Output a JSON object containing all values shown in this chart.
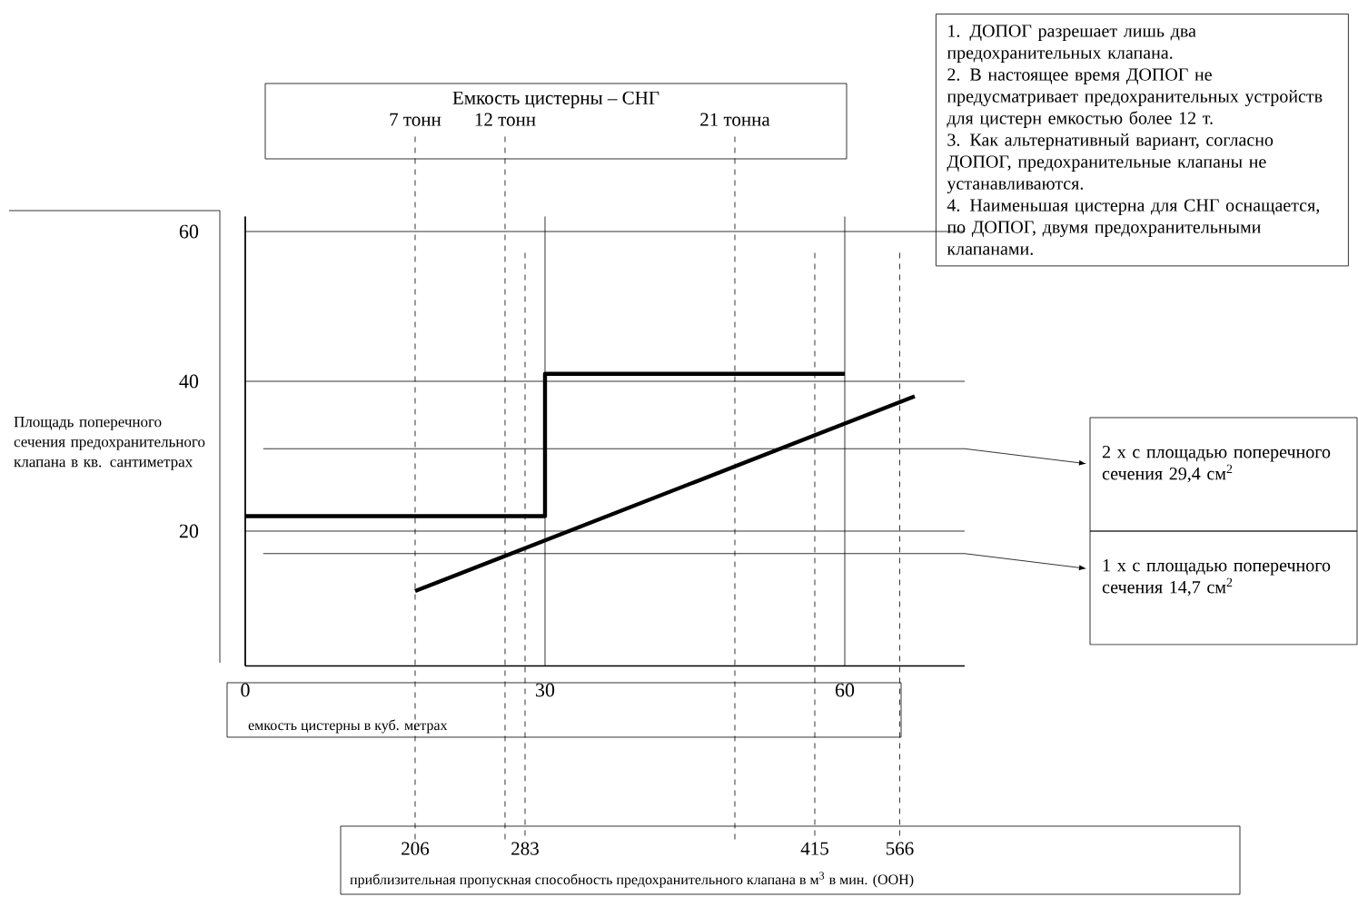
{
  "chart_data": {
    "type": "line",
    "title": "Емкость цистерны – СНГ",
    "xlabel": "емкость цистерны в куб. метрах",
    "ylabel": "Площадь поперечного сечения предохранительного клапана в кв. сантиметрах",
    "xlim": [
      0,
      72
    ],
    "ylim": [
      2,
      62
    ],
    "xticks": [
      0,
      30,
      60
    ],
    "yticks": [
      20,
      40,
      60
    ],
    "grid": true,
    "legend": "right",
    "series": [
      {
        "type": "step",
        "color": "#000000",
        "x": [
          0,
          30,
          60
        ],
        "values": [
          22,
          41,
          41
        ]
      },
      {
        "color": "#000000",
        "x": [
          17,
          67
        ],
        "values": [
          12,
          38
        ]
      }
    ],
    "ref_lines": [
      {
        "axis": "x",
        "value": 17,
        "label": "7 тонн",
        "line_style": "dashed"
      },
      {
        "axis": "x",
        "value": 26,
        "label": "12 тонн",
        "line_style": "dashed"
      },
      {
        "axis": "x",
        "value": 49,
        "label": "21 тонна",
        "line_style": "dashed"
      },
      {
        "axis": "x",
        "value": 28,
        "line_style": "dashed"
      },
      {
        "axis": "x",
        "value": 57,
        "line_style": "dashed"
      },
      {
        "axis": "x",
        "value": 65.5,
        "line_style": "dashed"
      },
      {
        "axis": "y",
        "value": 31,
        "label": "2 x с площадью поперечного сечения 29,4 см$^{2}$",
        "line_style": "solid"
      },
      {
        "axis": "y",
        "value": 17,
        "label": "1 x с площадью поперечного сечения 14,7 см$^{2}$",
        "line_style": "solid"
      }
    ],
    "annotations": [
      "1.  ДОПОГ разрешает лишь два предохранительных клапана.",
      "2.  В настоящее время ДОПОГ не предусматривает предохранительных устройств для цистерн емкостью более 12 т.",
      "3.  Как альтернативный вариант, согласно ДОПОГ, предохранительные клапаны не устанавливаются.",
      "4.  Наименьшая цистерна для СНГ оснащается, по ДОПОГ, двумя предохранительными клапанами.",
      "206",
      "283",
      "415",
      "566",
      "приблизительная пропускная способность предохранительного клапана в м$^{3}$ в мин. (ООН)"
    ]
  }
}
